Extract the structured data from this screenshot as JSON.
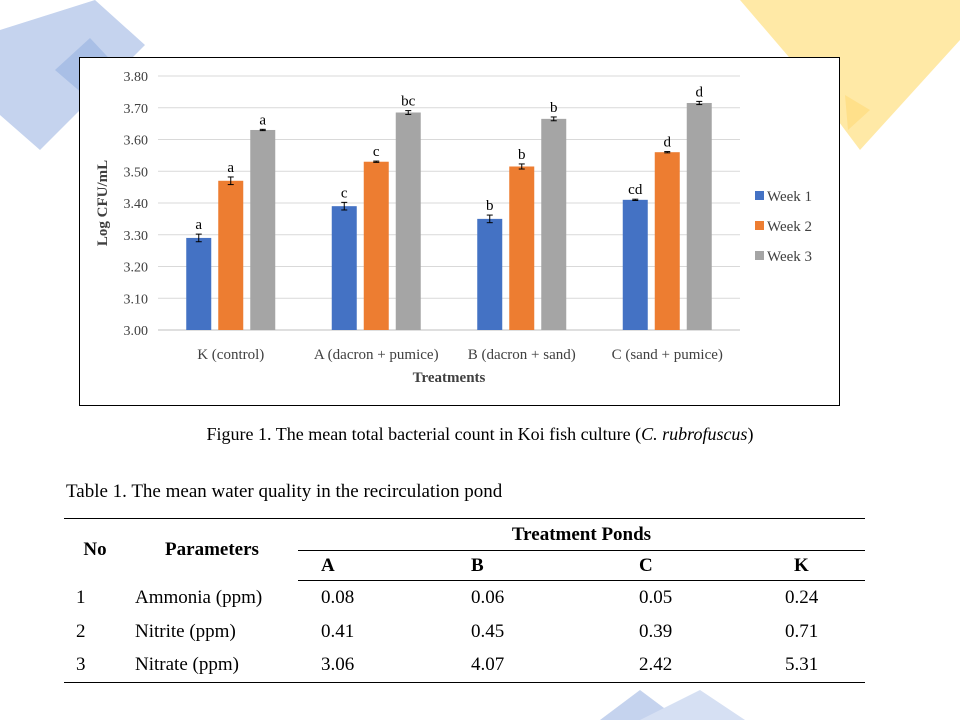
{
  "figure": {
    "caption_prefix": "Figure 1. The mean total bacterial count in Koi fish culture (",
    "caption_italic": "C. rubrofuscus",
    "caption_suffix": ")"
  },
  "chart_data": {
    "type": "bar",
    "xlabel": "Treatments",
    "ylabel": "Log CFU/mL",
    "ylim": [
      3.0,
      3.8
    ],
    "yticks": [
      "3.00",
      "3.10",
      "3.20",
      "3.30",
      "3.40",
      "3.50",
      "3.60",
      "3.70",
      "3.80"
    ],
    "grid": true,
    "legend_position": "right",
    "categories": [
      "K (control)",
      "A (dacron + pumice)",
      "B (dacron + sand)",
      "C (sand + pumice)"
    ],
    "series": [
      {
        "name": "Week 1",
        "color": "#4472C4",
        "values": [
          3.29,
          3.39,
          3.35,
          3.41
        ],
        "errors": [
          0.012,
          0.012,
          0.012,
          0.002
        ],
        "labels": [
          "a",
          "c",
          "b",
          "cd"
        ]
      },
      {
        "name": "Week 2",
        "color": "#ED7D31",
        "values": [
          3.47,
          3.53,
          3.515,
          3.56
        ],
        "errors": [
          0.012,
          0.002,
          0.008,
          0.002
        ],
        "labels": [
          "a",
          "c",
          "b",
          "d"
        ]
      },
      {
        "name": "Week 3",
        "color": "#A5A5A5",
        "values": [
          3.63,
          3.685,
          3.665,
          3.715
        ],
        "errors": [
          0.002,
          0.006,
          0.006,
          0.005
        ],
        "labels": [
          "a",
          "bc",
          "b",
          "d"
        ]
      }
    ]
  },
  "table": {
    "title": "Table 1. The mean water quality in the recirculation pond",
    "header_no": "No",
    "header_parameters": "Parameters",
    "header_group": "Treatment Ponds",
    "columns": [
      "A",
      "B",
      "C",
      "K"
    ],
    "rows": [
      {
        "no": "1",
        "param": "Ammonia (ppm)",
        "values": [
          "0.08",
          "0.06",
          "0.05",
          "0.24"
        ]
      },
      {
        "no": "2",
        "param": "Nitrite (ppm)",
        "values": [
          "0.41",
          "0.45",
          "0.39",
          "0.71"
        ]
      },
      {
        "no": "3",
        "param": "Nitrate (ppm)",
        "values": [
          "3.06",
          "4.07",
          "2.42",
          "5.31"
        ]
      }
    ]
  }
}
